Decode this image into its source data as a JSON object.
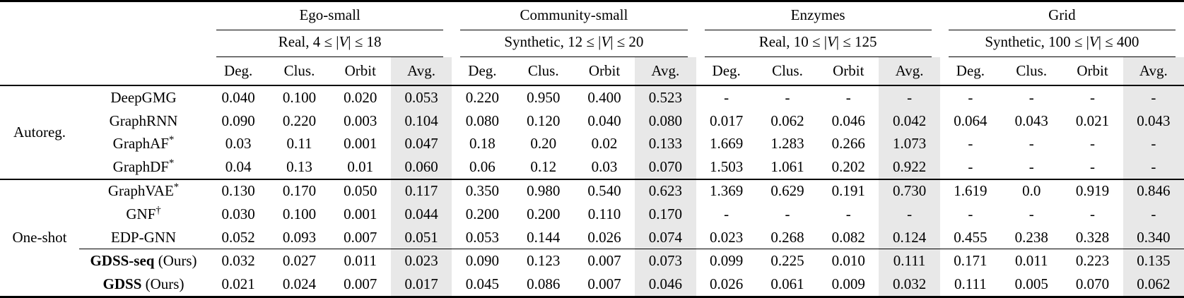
{
  "colors": {
    "avg_column_shade": "#e8e8e8",
    "rule_color": "#000000",
    "text_color": "#000000",
    "background": "#ffffff"
  },
  "table": {
    "groups": [
      {
        "title": "Ego-small",
        "subtitle_pre": "Real, 4 ≤ |",
        "subtitle_var": "V",
        "subtitle_post": "| ≤ 18"
      },
      {
        "title": "Community-small",
        "subtitle_pre": "Synthetic, 12 ≤ |",
        "subtitle_var": "V",
        "subtitle_post": "| ≤ 20"
      },
      {
        "title": "Enzymes",
        "subtitle_pre": "Real, 10 ≤ |",
        "subtitle_var": "V",
        "subtitle_post": "| ≤ 125"
      },
      {
        "title": "Grid",
        "subtitle_pre": "Synthetic, 100 ≤ |",
        "subtitle_var": "V",
        "subtitle_post": "| ≤ 400"
      }
    ],
    "metric_headers": [
      "Deg.",
      "Clus.",
      "Orbit",
      "Avg."
    ],
    "sections": [
      {
        "label": "Autoreg.",
        "rows": [
          {
            "model": "DeepGMG",
            "sup": "",
            "suffix": "",
            "model_bold": false,
            "values": [
              "0.040",
              "0.100",
              "0.020",
              "0.053",
              "0.220",
              "0.950",
              "0.400",
              "0.523",
              "-",
              "-",
              "-",
              "-",
              "-",
              "-",
              "-",
              "-"
            ],
            "bold": []
          },
          {
            "model": "GraphRNN",
            "sup": "",
            "suffix": "",
            "model_bold": false,
            "values": [
              "0.090",
              "0.220",
              "0.003",
              "0.104",
              "0.080",
              "0.120",
              "0.040",
              "0.080",
              "0.017",
              "0.062",
              "0.046",
              "0.042",
              "0.064",
              "0.043",
              "0.021",
              "0.043"
            ],
            "bold": [
              8,
              12,
              14,
              15
            ]
          },
          {
            "model": "GraphAF",
            "sup": "*",
            "suffix": "",
            "model_bold": false,
            "values": [
              "0.03",
              "0.11",
              "0.001",
              "0.047",
              "0.18",
              "0.20",
              "0.02",
              "0.133",
              "1.669",
              "1.283",
              "0.266",
              "1.073",
              "-",
              "-",
              "-",
              "-"
            ],
            "bold": [
              2
            ]
          },
          {
            "model": "GraphDF",
            "sup": "*",
            "suffix": "",
            "model_bold": false,
            "values": [
              "0.04",
              "0.13",
              "0.01",
              "0.060",
              "0.06",
              "0.12",
              "0.03",
              "0.070",
              "1.503",
              "1.061",
              "0.202",
              "0.922",
              "-",
              "-",
              "-",
              "-"
            ],
            "bold": []
          }
        ]
      },
      {
        "label": "One-shot",
        "rule_before_row": 3,
        "rows": [
          {
            "model": "GraphVAE",
            "sup": "*",
            "suffix": "",
            "model_bold": false,
            "values": [
              "0.130",
              "0.170",
              "0.050",
              "0.117",
              "0.350",
              "0.980",
              "0.540",
              "0.623",
              "1.369",
              "0.629",
              "0.191",
              "0.730",
              "1.619",
              "0.0",
              "0.919",
              "0.846"
            ],
            "bold": [
              13
            ]
          },
          {
            "model": "GNF",
            "sup": "†",
            "suffix": "",
            "model_bold": false,
            "values": [
              "0.030",
              "0.100",
              "0.001",
              "0.044",
              "0.200",
              "0.200",
              "0.110",
              "0.170",
              "-",
              "-",
              "-",
              "-",
              "-",
              "-",
              "-",
              "-"
            ],
            "bold": [
              2
            ]
          },
          {
            "model": "EDP-GNN",
            "sup": "",
            "suffix": "",
            "model_bold": false,
            "values": [
              "0.052",
              "0.093",
              "0.007",
              "0.051",
              "0.053",
              "0.144",
              "0.026",
              "0.074",
              "0.023",
              "0.268",
              "0.082",
              "0.124",
              "0.455",
              "0.238",
              "0.328",
              "0.340"
            ],
            "bold": []
          },
          {
            "model": "GDSS-seq",
            "sup": "",
            "suffix": " (Ours)",
            "model_bold": true,
            "values": [
              "0.032",
              "0.027",
              "0.011",
              "0.023",
              "0.090",
              "0.123",
              "0.007",
              "0.073",
              "0.099",
              "0.225",
              "0.010",
              "0.111",
              "0.171",
              "0.011",
              "0.223",
              "0.135"
            ],
            "bold": [
              6
            ]
          },
          {
            "model": "GDSS",
            "sup": "",
            "suffix": " (Ours)",
            "model_bold": true,
            "values": [
              "0.021",
              "0.024",
              "0.007",
              "0.017",
              "0.045",
              "0.086",
              "0.007",
              "0.046",
              "0.026",
              "0.061",
              "0.009",
              "0.032",
              "0.111",
              "0.005",
              "0.070",
              "0.062"
            ],
            "bold": [
              0,
              1,
              3,
              4,
              5,
              6,
              7,
              9,
              10,
              11
            ]
          }
        ]
      }
    ]
  }
}
